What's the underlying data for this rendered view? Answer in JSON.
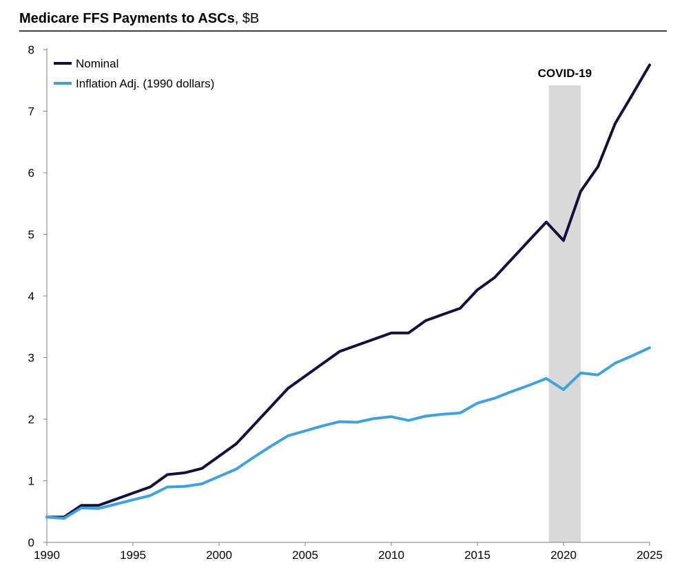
{
  "chart_data": {
    "type": "line",
    "title": "Medicare FFS Payments to ASCs",
    "title_unit": ", $B",
    "xlabel": "",
    "ylabel": "",
    "xlim": [
      1990,
      2025
    ],
    "ylim": [
      0,
      8
    ],
    "x_ticks": [
      "1990",
      "1995",
      "2000",
      "2005",
      "2010",
      "2015",
      "2020",
      "2025"
    ],
    "y_ticks": [
      "0",
      "1",
      "2",
      "3",
      "4",
      "5",
      "6",
      "7",
      "8"
    ],
    "legend_position": "top-left",
    "annotation": {
      "label": "COVID-19",
      "x_start": 2019.15,
      "x_end": 2021.0
    },
    "x": [
      1990,
      1991,
      1992,
      1993,
      1994,
      1995,
      1996,
      1997,
      1998,
      1999,
      2000,
      2001,
      2002,
      2003,
      2004,
      2005,
      2006,
      2007,
      2008,
      2009,
      2010,
      2011,
      2012,
      2013,
      2014,
      2015,
      2016,
      2017,
      2018,
      2019,
      2020,
      2021,
      2022,
      2023,
      2024,
      2025
    ],
    "series": [
      {
        "name": "Nominal",
        "color": "#14103d",
        "values": [
          0.41,
          0.41,
          0.6,
          0.6,
          0.7,
          0.8,
          0.9,
          1.1,
          1.13,
          1.2,
          1.4,
          1.6,
          1.9,
          2.2,
          2.5,
          2.7,
          2.9,
          3.1,
          3.2,
          3.3,
          3.4,
          3.4,
          3.6,
          3.7,
          3.8,
          4.1,
          4.3,
          4.6,
          4.9,
          5.2,
          4.9,
          5.7,
          6.1,
          6.8,
          7.27,
          7.75
        ]
      },
      {
        "name": "Inflation Adj. (1990 dollars)",
        "color": "#3fa2dc",
        "values": [
          0.41,
          0.39,
          0.56,
          0.55,
          0.62,
          0.69,
          0.76,
          0.9,
          0.91,
          0.95,
          1.07,
          1.19,
          1.38,
          1.56,
          1.73,
          1.81,
          1.89,
          1.96,
          1.95,
          2.01,
          2.04,
          1.98,
          2.05,
          2.08,
          2.1,
          2.26,
          2.34,
          2.45,
          2.55,
          2.66,
          2.48,
          2.75,
          2.72,
          2.91,
          3.03,
          3.16
        ]
      }
    ]
  }
}
